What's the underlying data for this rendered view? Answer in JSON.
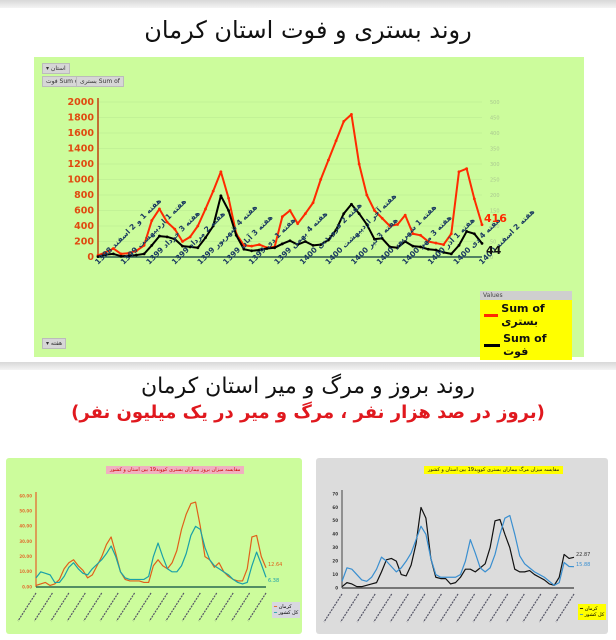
{
  "titles": {
    "top": "روند بستری و فوت استان کرمان",
    "bottom": "روند بروز و مرگ و میر استان کرمان",
    "bottom_sub": "(بروز در صد هزار نفر ، مرگ و میر در یک میلیون نفر)"
  },
  "main_chart": {
    "filter_chip": "استان ▾",
    "field_chip_1": "Sum of فوت",
    "field_chip_2": "Sum of بستری",
    "axis_chip": "هفته ▾",
    "legend_header": "Values",
    "legend_1": "Sum of بستری",
    "legend_2": "Sum of فوت",
    "end_label_red": "416",
    "end_label_black": "44"
  },
  "chart_data": [
    {
      "type": "line",
      "title": "روند بستری و فوت استان کرمان",
      "xlabel": "",
      "ylabel": "",
      "ylim": [
        0,
        2000
      ],
      "y2lim": [
        0,
        500
      ],
      "y_ticks": [
        0,
        200,
        400,
        600,
        800,
        1000,
        1200,
        1400,
        1600,
        1800,
        2000
      ],
      "y2_ticks": [
        0,
        50,
        100,
        150,
        200,
        250,
        300,
        350,
        400,
        450,
        500
      ],
      "categories": [
        "هفته 1 و 2 اسفند 1398",
        "هفته 1 اردیبهشت 1399",
        "هفته 3 خرداد 1399",
        "هفته 2 مرداد 1399",
        "هفته 4 شهریور 1399",
        "هفته 3 آبان 1399",
        "هفته 1 دی 1399",
        "هفته 4 بهمن 1399",
        "هفته 2 فروردین 1400",
        "هفته آخر اردیبهشت 1400",
        "هفته 3 تیر 1400",
        "هفته 1 شهریور 1400",
        "هفته 3 مهر 1400",
        "هفته 1 آذر 1400",
        "هفته 4 دی 1400",
        "هفته 2 اسفند 1400"
      ],
      "series": [
        {
          "name": "Sum of بستری",
          "color": "#ff2a00",
          "axis": "left",
          "values": [
            20,
            60,
            110,
            40,
            50,
            80,
            150,
            470,
            620,
            450,
            360,
            200,
            260,
            400,
            620,
            850,
            1100,
            760,
            300,
            150,
            140,
            160,
            120,
            130,
            520,
            600,
            430,
            560,
            700,
            1000,
            1250,
            1500,
            1750,
            1840,
            1200,
            800,
            600,
            500,
            400,
            420,
            540,
            300,
            280,
            200,
            180,
            160,
            300,
            1100,
            1140,
            750,
            416
          ]
        },
        {
          "name": "Sum of فوت",
          "color": "#000000",
          "axis": "left",
          "values": [
            5,
            30,
            40,
            10,
            15,
            25,
            40,
            150,
            270,
            260,
            230,
            140,
            130,
            120,
            250,
            400,
            790,
            600,
            280,
            100,
            80,
            90,
            110,
            120,
            170,
            210,
            160,
            200,
            150,
            160,
            220,
            350,
            560,
            680,
            560,
            420,
            230,
            240,
            130,
            120,
            200,
            140,
            130,
            100,
            90,
            60,
            40,
            150,
            330,
            300,
            176
          ]
        }
      ],
      "end_labels": {
        "بستری": 416,
        "فوت": 44
      },
      "legend_position": "bottom-right",
      "grid": true
    },
    {
      "type": "line",
      "title": "مقایسه میزان بروز بیماران بستری کووید19 بین استان و کشور",
      "ylim": [
        0,
        60
      ],
      "y_ticks": [
        "0.00",
        "10.00",
        "20.00",
        "30.00",
        "40.00",
        "50.00",
        "60.00"
      ],
      "series": [
        {
          "name": "کرمان",
          "color": "#e0601a",
          "values": [
            1,
            2,
            3,
            1,
            2,
            5,
            12,
            16,
            18,
            14,
            11,
            6,
            8,
            14,
            20,
            28,
            33,
            22,
            10,
            5,
            4,
            4,
            4,
            3,
            3,
            14,
            18,
            14,
            12,
            16,
            24,
            38,
            48,
            55,
            56,
            40,
            20,
            18,
            13,
            16,
            10,
            7,
            5,
            4,
            4,
            12,
            33,
            34,
            20,
            12.64
          ]
        },
        {
          "name": "کل کشور",
          "color": "#1aa0a8",
          "values": [
            6,
            10,
            9,
            8,
            3,
            3,
            7,
            13,
            16,
            12,
            9,
            8,
            12,
            15,
            18,
            22,
            27,
            20,
            10,
            6,
            5,
            5,
            5,
            5,
            7,
            20,
            29,
            20,
            12,
            10,
            10,
            14,
            22,
            34,
            40,
            38,
            26,
            18,
            14,
            12,
            10,
            8,
            5,
            3,
            2,
            3,
            14,
            23,
            15,
            6.38
          ]
        }
      ],
      "end_labels": {
        "کرمان": 12.64,
        "کل کشور": 6.38
      },
      "legend": [
        "کرمان",
        "کل کشور"
      ]
    },
    {
      "type": "line",
      "title": "مقایسه میزان مرگ بیماران بستری کووید19 بین استان و کشور",
      "ylim": [
        0,
        70
      ],
      "y_ticks": [
        0,
        10,
        20,
        30,
        40,
        50,
        60,
        70
      ],
      "series": [
        {
          "name": "کرمان",
          "color": "#111111",
          "values": [
            1,
            4,
            3,
            1,
            1,
            2,
            3,
            4,
            12,
            21,
            22,
            20,
            10,
            9,
            17,
            33,
            60,
            52,
            22,
            8,
            7,
            7,
            3,
            4,
            8,
            14,
            14,
            12,
            15,
            18,
            30,
            50,
            51,
            40,
            30,
            14,
            12,
            12,
            13,
            10,
            8,
            6,
            3,
            2,
            8,
            25,
            22,
            22.87
          ]
        },
        {
          "name": "کل کشور",
          "color": "#3a8fd0",
          "values": [
            5,
            15,
            14,
            10,
            6,
            5,
            8,
            14,
            23,
            20,
            16,
            12,
            15,
            20,
            26,
            36,
            46,
            40,
            22,
            10,
            8,
            8,
            8,
            8,
            10,
            20,
            36,
            26,
            15,
            12,
            15,
            25,
            40,
            52,
            54,
            40,
            24,
            18,
            15,
            12,
            10,
            8,
            5,
            2,
            4,
            19,
            16,
            15.88
          ]
        }
      ],
      "end_labels": {
        "کرمان": 22.87,
        "کل کشور": 15.88
      },
      "legend": [
        "کرمان",
        "کل کشور"
      ]
    }
  ],
  "left_chart": {
    "title": "مقایسه میزان بروز بیماران بستری کووید19 بین استان و کشور",
    "legend_1": "کرمان",
    "legend_2": "کل کشور",
    "end_1": "12.64",
    "end_2": "6.38",
    "y_ticks": [
      "0.00",
      "10.00",
      "20.00",
      "30.00",
      "40.00",
      "50.00",
      "60.00"
    ]
  },
  "right_chart": {
    "title": "مقایسه میزان مرگ بیماران بستری کووید19 بین استان و کشور",
    "legend_1": "کرمان",
    "legend_2": "کل کشور",
    "end_1": "22.87",
    "end_2": "15.88",
    "y_ticks": [
      "0",
      "10",
      "20",
      "30",
      "40",
      "50",
      "60",
      "70"
    ]
  },
  "colors": {
    "panel_green": "#ccfc9c",
    "panel_grey": "#dcdcdc",
    "red_series": "#ff2a00",
    "black_series": "#000000",
    "legend_yellow": "#ffff00",
    "subtitle_red": "#e0181e"
  }
}
